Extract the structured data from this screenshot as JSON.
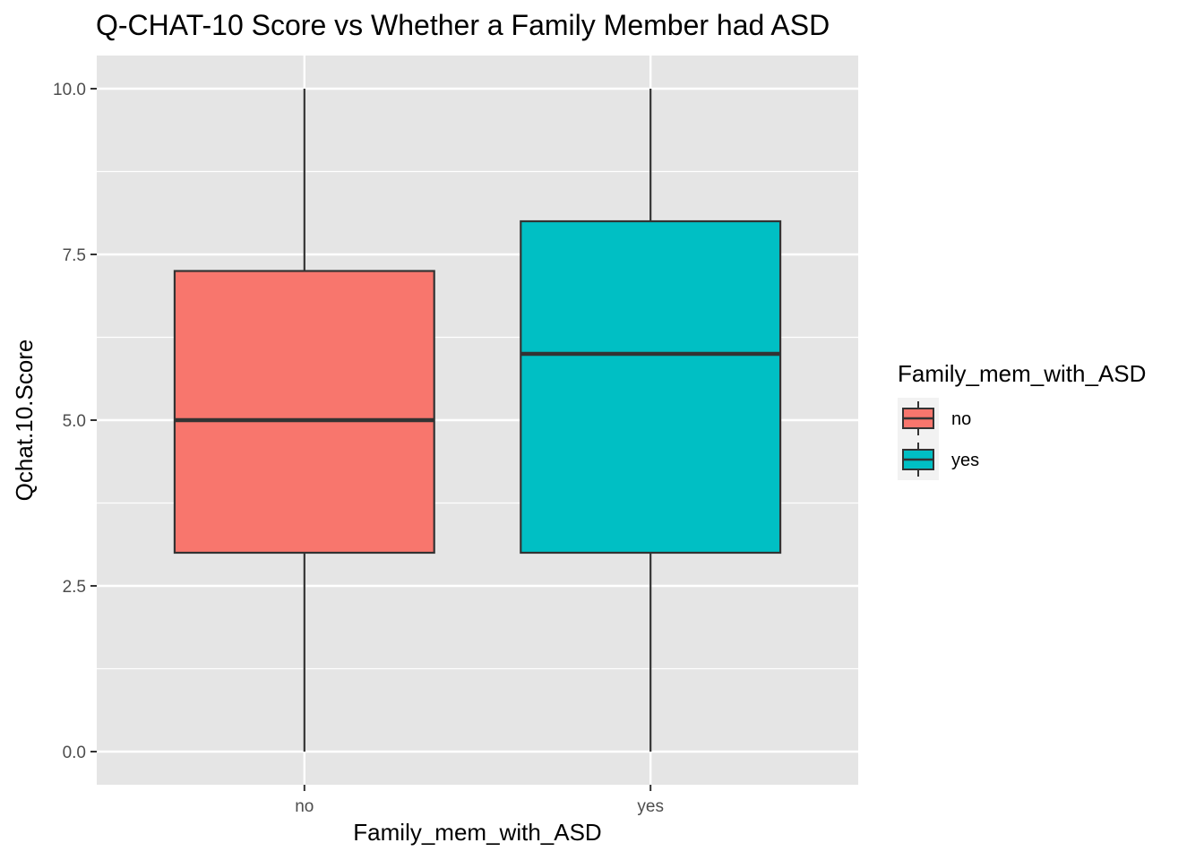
{
  "chart_data": {
    "type": "boxplot",
    "title": "Q-CHAT-10 Score vs Whether a Family Member had ASD",
    "xlabel": "Family_mem_with_ASD",
    "ylabel": "Qchat.10.Score",
    "categories": [
      "no",
      "yes"
    ],
    "ylim": [
      -0.5,
      10.5
    ],
    "yticks": [
      "0.0",
      "2.5",
      "5.0",
      "7.5",
      "10.0"
    ],
    "ytick_values": [
      0,
      2.5,
      5,
      7.5,
      10
    ],
    "boxes": [
      {
        "category": "no",
        "min": 0,
        "q1": 3,
        "median": 5,
        "q3": 7.25,
        "max": 10,
        "color": "#F8766D"
      },
      {
        "category": "yes",
        "min": 0,
        "q1": 3,
        "median": 6,
        "q3": 8,
        "max": 10,
        "color": "#00BFC4"
      }
    ],
    "grid": true,
    "legend": {
      "title": "Family_mem_with_ASD",
      "placement": "right",
      "entries": [
        {
          "label": "no",
          "color": "#F8766D"
        },
        {
          "label": "yes",
          "color": "#00BFC4"
        }
      ]
    },
    "panel_background": "#E5E5E5",
    "gridline_color": "#FFFFFF",
    "outline_color": "#333333"
  }
}
